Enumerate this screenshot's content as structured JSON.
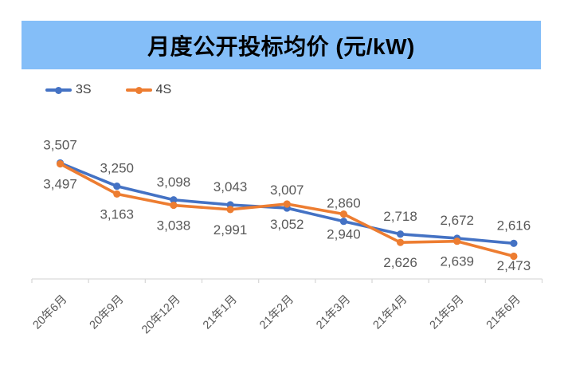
{
  "title": {
    "text": "月度公开投标均价 (元/kW)"
  },
  "legend": {
    "items": [
      {
        "label": "3S",
        "color": "#4472C4"
      },
      {
        "label": "4S",
        "color": "#ED7D31"
      }
    ]
  },
  "colors": {
    "banner_bg": "#84BEF8",
    "title_text": "#000000",
    "axis_line": "#D9D9D9",
    "data_label_text": "#595959",
    "axis_label_text": "#595959",
    "background": "#FFFFFF",
    "series_3s": "#4472C4",
    "series_4s": "#ED7D31"
  },
  "chart_data": {
    "type": "line",
    "title": "月度公开投标均价 (元/kW)",
    "categories": [
      "20年6月",
      "20年9月",
      "20年12月",
      "21年1月",
      "21年2月",
      "21年3月",
      "21年4月",
      "21年5月",
      "21年6月"
    ],
    "series": [
      {
        "name": "3S",
        "color": "#4472C4",
        "label_position": "above",
        "values": [
          3507,
          3250,
          3098,
          3043,
          3007,
          2860,
          2718,
          2672,
          2616
        ],
        "labels": [
          "3,507",
          "3,250",
          "3,098",
          "3,043",
          "3,007",
          "2,860",
          "2,718",
          "2,672",
          "2,616"
        ]
      },
      {
        "name": "4S",
        "color": "#ED7D31",
        "label_position": "below",
        "values": [
          3497,
          3163,
          3038,
          2991,
          3052,
          2940,
          2626,
          2639,
          2473
        ],
        "labels": [
          "3,497",
          "3,163",
          "3,038",
          "2,991",
          "3,052",
          "2,940",
          "2,626",
          "2,639",
          "2,473"
        ]
      }
    ],
    "xlabel": "",
    "ylabel": "",
    "ylim": [
      2221,
      4071
    ],
    "grid": false,
    "y_axis_visible": false,
    "data_labels": true,
    "legend_position": "top-left",
    "x_tick_rotation": 45
  }
}
